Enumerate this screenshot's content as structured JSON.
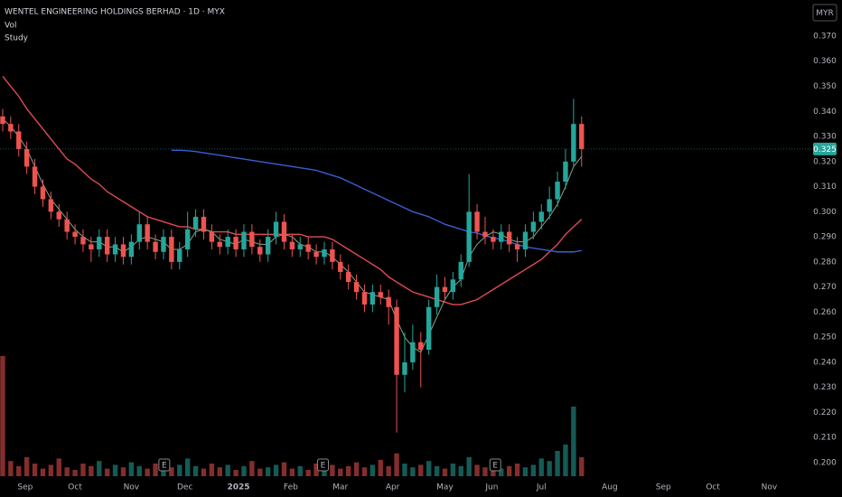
{
  "chart_data": {
    "type": "candlestick",
    "title": "WENTEL ENGINEERING HOLDINGS BERHAD · 1D · MYX",
    "indicator_labels": [
      "Vol",
      "Study"
    ],
    "currency": "MYR",
    "up_color": "#26a69a",
    "down_color": "#ef5350",
    "xlim": [
      0,
      300
    ],
    "ylim": [
      0.1935,
      0.3844
    ],
    "yticks": [
      {
        "value": 0.2,
        "label": "0.200"
      },
      {
        "value": 0.21,
        "label": "0.210"
      },
      {
        "value": 0.22,
        "label": "0.220"
      },
      {
        "value": 0.23,
        "label": "0.230"
      },
      {
        "value": 0.24,
        "label": "0.240"
      },
      {
        "value": 0.25,
        "label": "0.250"
      },
      {
        "value": 0.26,
        "label": "0.260"
      },
      {
        "value": 0.27,
        "label": "0.270"
      },
      {
        "value": 0.28,
        "label": "0.280"
      },
      {
        "value": 0.29,
        "label": "0.290"
      },
      {
        "value": 0.3,
        "label": "0.300"
      },
      {
        "value": 0.31,
        "label": "0.310"
      },
      {
        "value": 0.32,
        "label": "0.320"
      },
      {
        "value": 0.33,
        "label": "0.330"
      },
      {
        "value": 0.34,
        "label": "0.340"
      },
      {
        "value": 0.35,
        "label": "0.350"
      },
      {
        "value": 0.36,
        "label": "0.360"
      },
      {
        "value": 0.37,
        "label": "0.370"
      }
    ],
    "xticks": [
      {
        "value": 9.4,
        "label": "Sep"
      },
      {
        "value": 28,
        "label": "Oct"
      },
      {
        "value": 49,
        "label": "Nov"
      },
      {
        "value": 69,
        "label": "Dec"
      },
      {
        "value": 89,
        "label": "2025"
      },
      {
        "value": 108.5,
        "label": "Feb"
      },
      {
        "value": 127,
        "label": "Mar"
      },
      {
        "value": 146.5,
        "label": "Apr"
      },
      {
        "value": 166,
        "label": "May"
      },
      {
        "value": 183.5,
        "label": "Jun"
      },
      {
        "value": 202,
        "label": "Jul"
      },
      {
        "value": 227.5,
        "label": "Aug"
      },
      {
        "value": 247.5,
        "label": "Sep"
      },
      {
        "value": 266,
        "label": "Oct"
      },
      {
        "value": 287,
        "label": "Nov"
      }
    ],
    "last_price": {
      "value": 0.325,
      "label": "0.325"
    },
    "events": [
      {
        "x": 61.3,
        "label": "E"
      },
      {
        "x": 120.5,
        "label": "E"
      },
      {
        "x": 184.8,
        "label": "E"
      }
    ],
    "x": [
      1,
      4,
      7,
      10,
      13,
      16,
      19,
      22,
      25,
      28,
      31,
      34,
      37,
      40,
      43,
      46,
      49,
      52,
      55,
      58,
      61,
      64,
      67,
      70,
      73,
      76,
      79,
      82,
      85,
      88,
      91,
      94,
      97,
      100,
      103,
      106,
      109,
      112,
      115,
      118,
      121,
      124,
      127,
      130,
      133,
      136,
      139,
      142,
      145,
      148,
      151,
      154,
      157,
      160,
      163,
      166,
      169,
      172,
      175,
      178,
      181,
      184,
      187,
      190,
      193,
      196,
      199,
      202,
      205,
      208,
      211,
      214,
      217
    ],
    "open": [
      0.338,
      0.335,
      0.332,
      0.325,
      0.318,
      0.31,
      0.305,
      0.3,
      0.297,
      0.292,
      0.29,
      0.287,
      0.285,
      0.29,
      0.283,
      0.287,
      0.282,
      0.288,
      0.295,
      0.288,
      0.284,
      0.29,
      0.28,
      0.285,
      0.293,
      0.298,
      0.292,
      0.288,
      0.286,
      0.29,
      0.285,
      0.292,
      0.286,
      0.283,
      0.29,
      0.296,
      0.288,
      0.285,
      0.287,
      0.284,
      0.282,
      0.285,
      0.28,
      0.276,
      0.272,
      0.268,
      0.263,
      0.268,
      0.266,
      0.262,
      0.235,
      0.24,
      0.248,
      0.245,
      0.262,
      0.27,
      0.268,
      0.273,
      0.28,
      0.3,
      0.292,
      0.29,
      0.288,
      0.292,
      0.287,
      0.285,
      0.292,
      0.296,
      0.3,
      0.305,
      0.312,
      0.32,
      0.335
    ],
    "high": [
      0.341,
      0.338,
      0.335,
      0.328,
      0.321,
      0.313,
      0.308,
      0.303,
      0.3,
      0.295,
      0.293,
      0.29,
      0.293,
      0.293,
      0.29,
      0.29,
      0.291,
      0.3,
      0.298,
      0.291,
      0.293,
      0.293,
      0.288,
      0.3,
      0.301,
      0.301,
      0.295,
      0.291,
      0.293,
      0.293,
      0.295,
      0.295,
      0.289,
      0.293,
      0.3,
      0.299,
      0.291,
      0.29,
      0.29,
      0.287,
      0.288,
      0.288,
      0.283,
      0.279,
      0.275,
      0.271,
      0.271,
      0.271,
      0.269,
      0.265,
      0.252,
      0.255,
      0.252,
      0.265,
      0.275,
      0.274,
      0.276,
      0.283,
      0.315,
      0.303,
      0.298,
      0.293,
      0.295,
      0.295,
      0.29,
      0.295,
      0.3,
      0.303,
      0.31,
      0.316,
      0.325,
      0.345,
      0.338
    ],
    "low": [
      0.332,
      0.329,
      0.322,
      0.315,
      0.307,
      0.302,
      0.297,
      0.294,
      0.289,
      0.287,
      0.284,
      0.28,
      0.282,
      0.28,
      0.28,
      0.279,
      0.279,
      0.285,
      0.285,
      0.281,
      0.281,
      0.277,
      0.277,
      0.282,
      0.29,
      0.289,
      0.285,
      0.283,
      0.283,
      0.282,
      0.282,
      0.283,
      0.28,
      0.28,
      0.287,
      0.285,
      0.282,
      0.282,
      0.281,
      0.279,
      0.279,
      0.277,
      0.273,
      0.269,
      0.265,
      0.26,
      0.26,
      0.263,
      0.255,
      0.212,
      0.228,
      0.237,
      0.23,
      0.243,
      0.259,
      0.265,
      0.265,
      0.27,
      0.278,
      0.289,
      0.287,
      0.285,
      0.285,
      0.284,
      0.28,
      0.282,
      0.289,
      0.293,
      0.297,
      0.302,
      0.309,
      0.318,
      0.318
    ],
    "close": [
      0.335,
      0.332,
      0.325,
      0.318,
      0.31,
      0.305,
      0.3,
      0.297,
      0.292,
      0.29,
      0.287,
      0.285,
      0.29,
      0.283,
      0.287,
      0.282,
      0.288,
      0.295,
      0.288,
      0.284,
      0.29,
      0.28,
      0.285,
      0.293,
      0.298,
      0.292,
      0.288,
      0.286,
      0.29,
      0.285,
      0.292,
      0.286,
      0.283,
      0.29,
      0.296,
      0.288,
      0.285,
      0.287,
      0.284,
      0.282,
      0.285,
      0.28,
      0.276,
      0.272,
      0.268,
      0.263,
      0.268,
      0.266,
      0.262,
      0.235,
      0.24,
      0.248,
      0.245,
      0.262,
      0.27,
      0.268,
      0.273,
      0.28,
      0.3,
      0.292,
      0.29,
      0.288,
      0.292,
      0.287,
      0.285,
      0.292,
      0.296,
      0.3,
      0.305,
      0.312,
      0.32,
      0.335,
      0.325
    ],
    "volume": [
      95,
      12,
      8,
      15,
      10,
      6,
      9,
      14,
      7,
      5,
      10,
      8,
      12,
      6,
      9,
      7,
      11,
      8,
      6,
      10,
      5,
      7,
      9,
      14,
      8,
      6,
      10,
      7,
      9,
      5,
      8,
      12,
      6,
      7,
      9,
      11,
      6,
      8,
      5,
      10,
      7,
      9,
      6,
      8,
      11,
      7,
      9,
      13,
      8,
      18,
      10,
      7,
      9,
      12,
      8,
      6,
      10,
      8,
      15,
      9,
      7,
      11,
      6,
      8,
      10,
      7,
      9,
      14,
      12,
      20,
      25,
      55,
      15
    ],
    "lines": [
      {
        "color": "#e04a55",
        "values": [
          0.354,
          0.35,
          0.346,
          0.341,
          0.337,
          0.333,
          0.329,
          0.325,
          0.321,
          0.319,
          0.316,
          0.313,
          0.311,
          0.308,
          0.306,
          0.304,
          0.302,
          0.3,
          0.298,
          0.297,
          0.296,
          0.295,
          0.294,
          0.294,
          0.293,
          0.293,
          0.292,
          0.292,
          0.292,
          0.291,
          0.291,
          0.291,
          0.291,
          0.291,
          0.291,
          0.291,
          0.291,
          0.291,
          0.29,
          0.29,
          0.29,
          0.289,
          0.287,
          0.285,
          0.283,
          0.281,
          0.279,
          0.277,
          0.274,
          0.272,
          0.27,
          0.268,
          0.267,
          0.266,
          0.265,
          0.264,
          0.263,
          0.263,
          0.264,
          0.265,
          0.267,
          0.269,
          0.271,
          0.273,
          0.275,
          0.277,
          0.279,
          0.281,
          0.284,
          0.287,
          0.291,
          0.294,
          0.297
        ]
      },
      {
        "color": "#3a5fd0",
        "values": [
          null,
          null,
          null,
          null,
          null,
          null,
          null,
          null,
          null,
          null,
          null,
          null,
          null,
          null,
          null,
          null,
          null,
          null,
          null,
          null,
          null,
          0.3245,
          0.3245,
          0.3243,
          0.324,
          0.3235,
          0.323,
          0.3225,
          0.322,
          0.3215,
          0.321,
          0.3205,
          0.32,
          0.3195,
          0.319,
          0.3185,
          0.318,
          0.3175,
          0.317,
          0.3165,
          0.3155,
          0.3145,
          0.3135,
          0.312,
          0.3105,
          0.309,
          0.3075,
          0.306,
          0.3045,
          0.303,
          0.3015,
          0.3,
          0.299,
          0.298,
          0.2965,
          0.295,
          0.294,
          0.293,
          0.292,
          0.2915,
          0.2905,
          0.2895,
          0.289,
          0.288,
          0.287,
          0.286,
          0.2855,
          0.285,
          0.2845,
          0.284,
          0.284,
          0.284,
          0.2845
        ]
      },
      {
        "color": "#7fa88a",
        "values": [
          0.337,
          0.334,
          0.33,
          0.325,
          0.318,
          0.311,
          0.305,
          0.301,
          0.297,
          0.293,
          0.29,
          0.288,
          0.288,
          0.286,
          0.286,
          0.284,
          0.286,
          0.289,
          0.29,
          0.289,
          0.288,
          0.285,
          0.285,
          0.287,
          0.292,
          0.293,
          0.292,
          0.289,
          0.288,
          0.287,
          0.289,
          0.288,
          0.287,
          0.287,
          0.29,
          0.291,
          0.29,
          0.287,
          0.286,
          0.284,
          0.284,
          0.282,
          0.279,
          0.276,
          0.272,
          0.268,
          0.267,
          0.266,
          0.265,
          0.257,
          0.25,
          0.246,
          0.244,
          0.251,
          0.258,
          0.265,
          0.27,
          0.273,
          0.282,
          0.287,
          0.29,
          0.292,
          0.291,
          0.289,
          0.288,
          0.288,
          0.29,
          0.294,
          0.298,
          0.303,
          0.31,
          0.318,
          0.322
        ]
      }
    ]
  }
}
